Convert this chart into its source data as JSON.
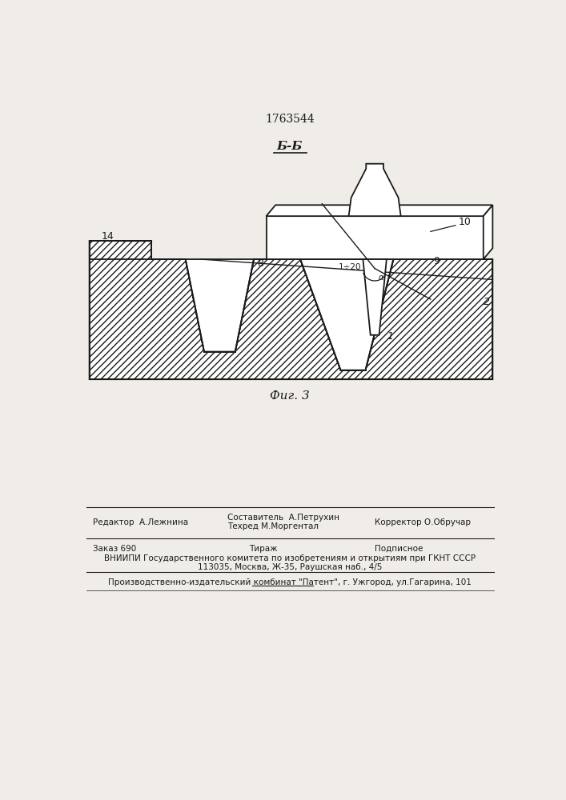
{
  "patent_number": "1763544",
  "section_label": "Б-Б",
  "fig_label": "Фиг. 3",
  "bg_color": "#f0ede8",
  "line_color": "#1a1a1a",
  "footer_line1_left": "Редактор  А.Лежнина",
  "footer_composer": "Составитель  А.Петрухин",
  "footer_techred": "Техред М.Моргентал",
  "footer_line1_right": "Корректор О.Обручар",
  "footer_line2_left": "Заказ 690",
  "footer_line2_mid": "Тираж",
  "footer_line2_right": "Подписное",
  "footer_line3": "ВНИИПИ Государственного комитета по изобретениям и открытиям при ГКНТ СССР",
  "footer_line4": "113035, Москва, Ж-35, Раушская наб., 4/5",
  "footer_line5": "Производственно-издательский комбинат \"Патент\", г. Ужгород, ул.Гагарина, 101"
}
